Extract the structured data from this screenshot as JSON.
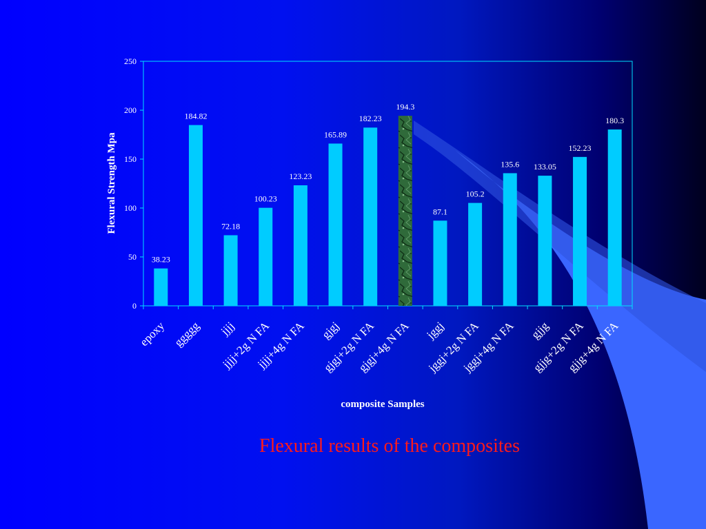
{
  "slide": {
    "caption": "Flexural results of the composites",
    "background_color": "#0000ff"
  },
  "chart_data": {
    "type": "bar",
    "title": "",
    "xlabel": "composite Samples",
    "ylabel": "Flexural Strength Mpa",
    "ylim": [
      0,
      250
    ],
    "yticks": [
      0,
      50,
      100,
      150,
      200,
      250
    ],
    "ytick_labels": [
      "0",
      "50",
      "100",
      "150",
      "200",
      "250"
    ],
    "grid": false,
    "legend": "none",
    "categories": [
      "epoxy",
      "ggggg",
      "jjjj",
      "jjjj+2g N FA",
      "jjjj+4g N FA",
      "gjgj",
      "gjgj+2g N FA",
      "gjgj+4g N FA",
      "jggj",
      "jggj+2g N FA",
      "jggj+4g N FA",
      "gjjg",
      "gjjg+2g N FA",
      "gjjg+4g N FA"
    ],
    "values": [
      38.23,
      184.82,
      72.18,
      100.23,
      123.23,
      165.89,
      182.23,
      194.3,
      87.1,
      105.2,
      135.6,
      133.05,
      152.23,
      180.3
    ],
    "value_labels": [
      "38.23",
      "184.82",
      "72.18",
      "100.23",
      "123.23",
      "165.89",
      "182.23",
      "194.3",
      "87.1",
      "105.2",
      "135.6",
      "133.05",
      "152.23",
      "180.3"
    ],
    "highlighted_index": 7,
    "bar_color": "#00ccff",
    "highlight_color": "#2f6a3a",
    "axis_color": "#00e0ff"
  }
}
